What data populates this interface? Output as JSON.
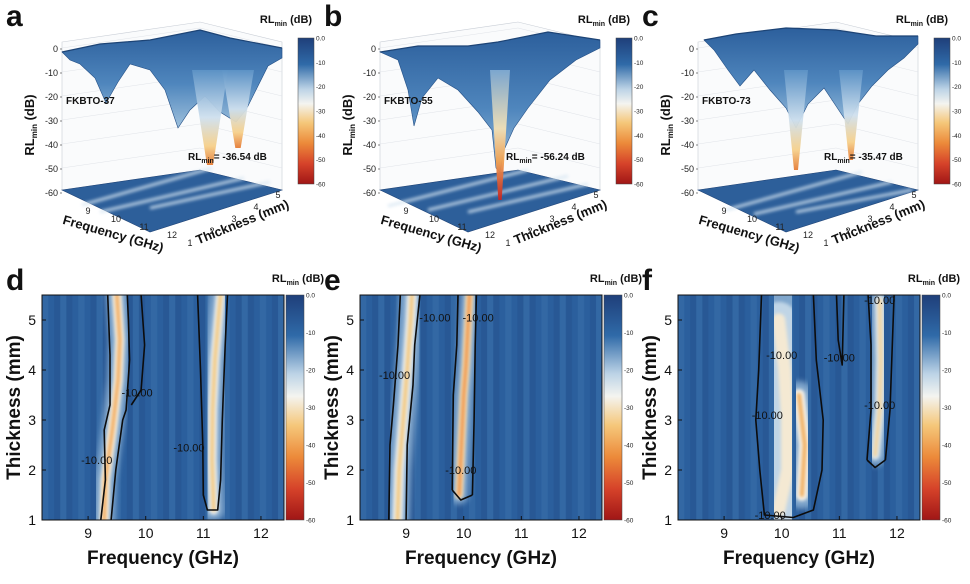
{
  "chart_data": [
    {
      "type": "surface",
      "panel": "a",
      "sample": "FKBTO-37",
      "annotation": {
        "prefix": "RL",
        "sub": "min",
        "text": "= -36.54 dB"
      },
      "xlabel": "Frequency (GHz)",
      "ylabel": "Thickness (mm)",
      "zlabel": {
        "main": "RL",
        "sub": "min",
        "unit": " (dB)"
      },
      "x_ticks": [
        "9",
        "10",
        "11",
        "12"
      ],
      "y_ticks": [
        "1",
        "2",
        "3",
        "4",
        "5"
      ],
      "z_ticks": [
        "0",
        "-10",
        "-20",
        "-30",
        "-40",
        "-50",
        "-60"
      ],
      "colorbar": {
        "title": {
          "main": "RL",
          "sub": "min",
          "unit": " (dB)"
        },
        "ticks": [
          "0.0",
          "-10",
          "-20",
          "-30",
          "-40",
          "-50",
          "-60"
        ],
        "range": [
          -60,
          0
        ]
      },
      "rl_min": -36.54
    },
    {
      "type": "surface",
      "panel": "b",
      "sample": "FKBTO-55",
      "annotation": {
        "prefix": "RL",
        "sub": "min",
        "text": "= -56.24 dB"
      },
      "xlabel": "Frequency (GHz)",
      "ylabel": "Thickness (mm)",
      "zlabel": {
        "main": "RL",
        "sub": "min",
        "unit": " (dB)"
      },
      "x_ticks": [
        "9",
        "10",
        "11",
        "12"
      ],
      "y_ticks": [
        "1",
        "2",
        "3",
        "4",
        "5"
      ],
      "z_ticks": [
        "0",
        "-10",
        "-20",
        "-30",
        "-40",
        "-50",
        "-60"
      ],
      "colorbar": {
        "title": {
          "main": "RL",
          "sub": "min",
          "unit": " (dB)"
        },
        "ticks": [
          "0.0",
          "-10",
          "-20",
          "-30",
          "-40",
          "-50",
          "-60"
        ],
        "range": [
          -60,
          0
        ]
      },
      "rl_min": -56.24
    },
    {
      "type": "surface",
      "panel": "c",
      "sample": "FKBTO-73",
      "annotation": {
        "prefix": "RL",
        "sub": "min",
        "text": "= -35.47 dB"
      },
      "xlabel": "Frequency (GHz)",
      "ylabel": "Thickness (mm)",
      "zlabel": {
        "main": "RL",
        "sub": "min",
        "unit": " (dB)"
      },
      "x_ticks": [
        "9",
        "10",
        "11",
        "12"
      ],
      "y_ticks": [
        "1",
        "2",
        "3",
        "4",
        "5"
      ],
      "z_ticks": [
        "0",
        "-10",
        "-20",
        "-30",
        "-40",
        "-50",
        "-60"
      ],
      "colorbar": {
        "title": {
          "main": "RL",
          "sub": "min",
          "unit": " (dB)"
        },
        "ticks": [
          "0.0",
          "-10",
          "-20",
          "-30",
          "-40",
          "-50",
          "-60"
        ],
        "range": [
          -60,
          0
        ]
      },
      "rl_min": -35.47
    },
    {
      "type": "heatmap",
      "panel": "d",
      "xlabel": "Frequency (GHz)",
      "ylabel": "Thickness (mm)",
      "xlim": [
        8.2,
        12.4
      ],
      "ylim": [
        1,
        5.5
      ],
      "x_ticks": [
        9,
        10,
        11,
        12
      ],
      "y_ticks": [
        1,
        2,
        3,
        4,
        5
      ],
      "colorbar": {
        "title": {
          "main": "RL",
          "sub": "min",
          "unit": " (dB)"
        },
        "ticks": [
          "0.0",
          "-10",
          "-20",
          "-30",
          "-40",
          "-50",
          "-60"
        ],
        "range": [
          -60,
          0
        ]
      },
      "contour_level": -10.0,
      "contour_labels": [
        {
          "text": "-10.00",
          "x": 9.15,
          "y": 2.2
        },
        {
          "text": "-10.00",
          "x": 9.85,
          "y": 3.55
        },
        {
          "text": "-10.00",
          "x": 10.75,
          "y": 2.45
        }
      ],
      "bands": [
        {
          "points": [
            [
              9.28,
              1.0
            ],
            [
              9.3,
              1.8
            ],
            [
              9.42,
              2.8
            ],
            [
              9.52,
              3.8
            ],
            [
              9.55,
              4.6
            ],
            [
              9.5,
              5.5
            ]
          ],
          "half_width": 0.12,
          "peak": -36
        },
        {
          "points": [
            [
              11.18,
              1.2
            ],
            [
              11.15,
              2.2
            ],
            [
              11.16,
              3.2
            ],
            [
              11.2,
              4.2
            ],
            [
              11.26,
              5.0
            ],
            [
              11.3,
              5.5
            ]
          ],
          "half_width": 0.12,
          "peak": -32
        }
      ],
      "contours": [
        [
          [
            9.22,
            1.0
          ],
          [
            9.3,
            1.8
          ],
          [
            9.28,
            2.8
          ],
          [
            9.38,
            3.3
          ],
          [
            9.38,
            4.3
          ],
          [
            9.34,
            5.5
          ]
        ],
        [
          [
            9.4,
            1.0
          ],
          [
            9.48,
            2.0
          ],
          [
            9.6,
            3.0
          ],
          [
            9.66,
            3.2
          ],
          [
            9.72,
            4.2
          ],
          [
            9.7,
            5.0
          ],
          [
            9.68,
            5.5
          ]
        ],
        [
          [
            9.75,
            3.3
          ],
          [
            9.92,
            3.6
          ],
          [
            9.98,
            4.5
          ],
          [
            9.92,
            5.5
          ]
        ],
        [
          [
            10.9,
            5.5
          ],
          [
            10.95,
            4.0
          ],
          [
            10.99,
            2.5
          ],
          [
            11.0,
            1.5
          ],
          [
            11.07,
            1.2
          ],
          [
            11.25,
            1.2
          ],
          [
            11.3,
            1.8
          ],
          [
            11.33,
            3.0
          ],
          [
            11.38,
            4.5
          ],
          [
            11.42,
            5.5
          ]
        ]
      ]
    },
    {
      "type": "heatmap",
      "panel": "e",
      "xlabel": "Frequency (GHz)",
      "ylabel": "Thickness (mm)",
      "xlim": [
        8.2,
        12.4
      ],
      "ylim": [
        1,
        5.5
      ],
      "x_ticks": [
        9,
        10,
        11,
        12
      ],
      "y_ticks": [
        1,
        2,
        3,
        4,
        5
      ],
      "colorbar": {
        "title": {
          "main": "RL",
          "sub": "min",
          "unit": " (dB)"
        },
        "ticks": [
          "0.0",
          "-10",
          "-20",
          "-30",
          "-40",
          "-50",
          "-60"
        ],
        "range": [
          -60,
          0
        ]
      },
      "contour_level": -10.0,
      "contour_labels": [
        {
          "text": "-10.00",
          "x": 8.8,
          "y": 3.9
        },
        {
          "text": "-10.00",
          "x": 9.5,
          "y": 5.05
        },
        {
          "text": "-10.00",
          "x": 10.25,
          "y": 5.05
        },
        {
          "text": "-10.00",
          "x": 9.95,
          "y": 2.0
        }
      ],
      "bands": [
        {
          "points": [
            [
              8.85,
              1.0
            ],
            [
              8.88,
              2.0
            ],
            [
              8.95,
              3.0
            ],
            [
              9.02,
              4.0
            ],
            [
              9.08,
              5.0
            ],
            [
              9.1,
              5.5
            ]
          ],
          "half_width": 0.13,
          "peak": -32
        },
        {
          "points": [
            [
              9.92,
              1.5
            ],
            [
              9.96,
              2.5
            ],
            [
              10.0,
              3.5
            ],
            [
              10.04,
              4.1
            ],
            [
              10.08,
              5.0
            ],
            [
              10.1,
              5.5
            ]
          ],
          "half_width": 0.1,
          "peak": -40
        },
        {
          "points": [
            [
              10.0,
              3.95
            ],
            [
              10.0,
              4.2
            ]
          ],
          "half_width": 0.05,
          "peak": -56
        }
      ],
      "contours": [
        [
          [
            8.7,
            1.0
          ],
          [
            8.72,
            2.5
          ],
          [
            8.78,
            3.3
          ],
          [
            8.86,
            4.5
          ],
          [
            8.9,
            5.5
          ]
        ],
        [
          [
            9.0,
            1.0
          ],
          [
            9.02,
            2.5
          ],
          [
            9.12,
            3.7
          ],
          [
            9.15,
            4.5
          ],
          [
            9.24,
            5.5
          ]
        ],
        [
          [
            9.8,
            1.6
          ],
          [
            9.82,
            3.5
          ],
          [
            9.88,
            4.5
          ],
          [
            9.9,
            5.5
          ]
        ],
        [
          [
            10.15,
            1.5
          ],
          [
            10.18,
            3.0
          ],
          [
            10.2,
            4.5
          ],
          [
            10.22,
            5.5
          ]
        ],
        [
          [
            9.8,
            1.6
          ],
          [
            9.95,
            1.4
          ],
          [
            10.15,
            1.5
          ]
        ]
      ]
    },
    {
      "type": "heatmap",
      "panel": "f",
      "xlabel": "Frequency (GHz)",
      "ylabel": "Thickness (mm)",
      "xlim": [
        8.2,
        12.4
      ],
      "ylim": [
        1,
        5.5
      ],
      "x_ticks": [
        9,
        10,
        11,
        12
      ],
      "y_ticks": [
        1,
        2,
        3,
        4,
        5
      ],
      "colorbar": {
        "title": {
          "main": "RL",
          "sub": "min",
          "unit": " (dB)"
        },
        "ticks": [
          "0.0",
          "-10",
          "-20",
          "-30",
          "-40",
          "-50",
          "-60"
        ],
        "range": [
          -60,
          0
        ]
      },
      "contour_level": -10.0,
      "contour_labels": [
        {
          "text": "-10.00",
          "x": 10.0,
          "y": 4.3
        },
        {
          "text": "-10.00",
          "x": 9.75,
          "y": 3.1
        },
        {
          "text": "-10.00",
          "x": 11.0,
          "y": 4.25
        },
        {
          "text": "-10.00",
          "x": 11.7,
          "y": 3.3
        },
        {
          "text": "-10.00",
          "x": 11.7,
          "y": 5.4
        },
        {
          "text": "-10.00",
          "x": 9.8,
          "y": 1.1
        }
      ],
      "bands": [
        {
          "points": [
            [
              9.95,
              1.2
            ],
            [
              10.1,
              2.0
            ],
            [
              10.1,
              3.0
            ],
            [
              10.05,
              4.0
            ],
            [
              9.95,
              5.0
            ]
          ],
          "half_width": 0.45,
          "peak": -26
        },
        {
          "points": [
            [
              10.35,
              1.5
            ],
            [
              10.4,
              2.5
            ],
            [
              10.3,
              3.5
            ]
          ],
          "half_width": 0.15,
          "peak": -35
        },
        {
          "points": [
            [
              11.62,
              2.3
            ],
            [
              11.7,
              3.2
            ],
            [
              11.72,
              4.2
            ],
            [
              11.7,
              5.4
            ]
          ],
          "half_width": 0.12,
          "peak": -30
        }
      ],
      "contours": [
        [
          [
            9.65,
            5.5
          ],
          [
            9.6,
            4.0
          ],
          [
            9.55,
            3.0
          ],
          [
            9.62,
            2.0
          ],
          [
            9.7,
            1.1
          ],
          [
            10.2,
            1.05
          ],
          [
            10.55,
            1.2
          ],
          [
            10.7,
            2.0
          ],
          [
            10.72,
            3.0
          ],
          [
            10.6,
            4.2
          ],
          [
            10.55,
            5.5
          ]
        ],
        [
          [
            10.95,
            5.5
          ],
          [
            10.98,
            4.6
          ],
          [
            11.05,
            4.1
          ],
          [
            11.06,
            4.6
          ],
          [
            11.08,
            5.5
          ]
        ],
        [
          [
            11.48,
            2.2
          ],
          [
            11.55,
            3.2
          ],
          [
            11.55,
            4.5
          ],
          [
            11.5,
            5.5
          ]
        ],
        [
          [
            11.8,
            2.2
          ],
          [
            11.88,
            3.2
          ],
          [
            11.92,
            4.5
          ],
          [
            11.95,
            5.5
          ]
        ],
        [
          [
            11.48,
            2.2
          ],
          [
            11.62,
            2.05
          ],
          [
            11.8,
            2.2
          ]
        ]
      ]
    }
  ]
}
